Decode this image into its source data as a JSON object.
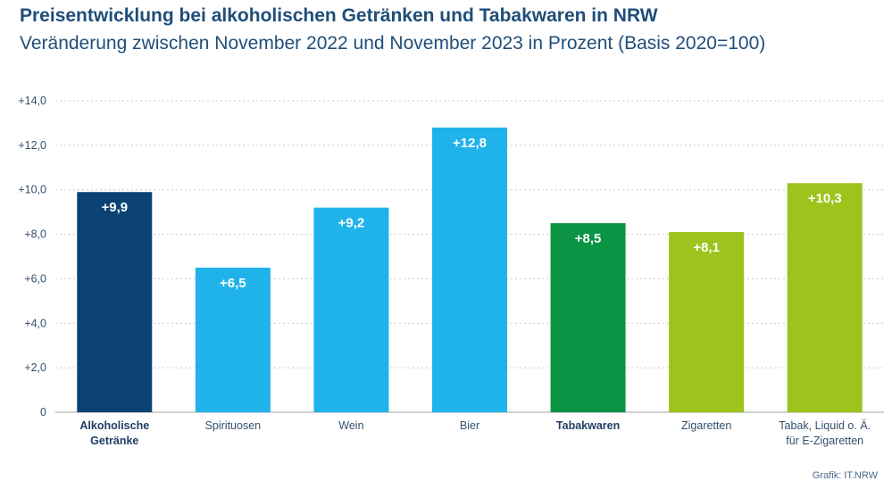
{
  "header": {
    "title": "Preisentwicklung bei alkoholischen Getränken und Tabakwaren in NRW",
    "subtitle": "Veränderung zwischen November 2022 und November 2023 in Prozent (Basis 2020=100)"
  },
  "footer": {
    "source": "Grafik: IT.NRW"
  },
  "chart_data": {
    "type": "bar",
    "categories": [
      [
        "Alkoholische",
        "Getränke"
      ],
      [
        "Spirituosen"
      ],
      [
        "Wein"
      ],
      [
        "Bier"
      ],
      [
        "Tabakwaren"
      ],
      [
        "Zigaretten"
      ],
      [
        "Tabak, Liquid o. Ä.",
        "für E-Zigaretten"
      ]
    ],
    "category_bold": [
      true,
      false,
      false,
      false,
      true,
      false,
      false
    ],
    "values": [
      9.9,
      6.5,
      9.2,
      12.8,
      8.5,
      8.1,
      10.3
    ],
    "value_labels": [
      "+9,9",
      "+6,5",
      "+9,2",
      "+12,8",
      "+8,5",
      "+8,1",
      "+10,3"
    ],
    "colors": [
      "#0b4274",
      "#1fb3ea",
      "#1fb3ea",
      "#1fb3ea",
      "#0a9444",
      "#9dc31c",
      "#9dc31c"
    ],
    "yticks": [
      0,
      2,
      4,
      6,
      8,
      10,
      12,
      14
    ],
    "ytick_labels": [
      "0",
      "+2,0",
      "+4,0",
      "+6,0",
      "+8,0",
      "+10,0",
      "+12,0",
      "+14,0"
    ],
    "ylim": [
      0,
      14
    ],
    "grid": true
  }
}
